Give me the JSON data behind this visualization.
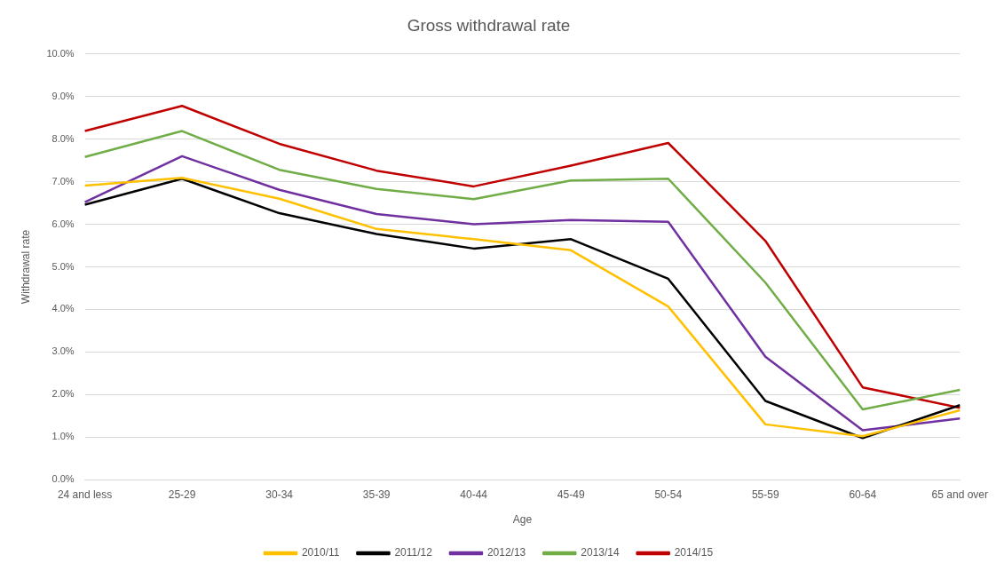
{
  "chart_data": {
    "type": "line",
    "title": "Gross withdrawal rate",
    "xlabel": "Age",
    "ylabel": "Withdrawal rate",
    "categories": [
      "24 and less",
      "25-29",
      "30-34",
      "35-39",
      "40-44",
      "45-49",
      "50-54",
      "55-59",
      "60-64",
      "65 and over"
    ],
    "series": [
      {
        "name": "2010/11",
        "color": "#ffc000",
        "values": [
          6.91,
          7.09,
          6.6,
          5.89,
          5.65,
          5.39,
          4.07,
          1.3,
          1.02,
          1.63
        ]
      },
      {
        "name": "2011/12",
        "color": "#000000",
        "values": [
          6.46,
          7.07,
          6.26,
          5.77,
          5.43,
          5.65,
          4.72,
          1.85,
          0.98,
          1.75
        ]
      },
      {
        "name": "2012/13",
        "color": "#7030a0",
        "values": [
          6.52,
          7.6,
          6.81,
          6.24,
          6.0,
          6.1,
          6.06,
          2.89,
          1.16,
          1.44
        ]
      },
      {
        "name": "2013/14",
        "color": "#70ad47",
        "values": [
          7.58,
          8.19,
          7.28,
          6.83,
          6.59,
          7.03,
          7.07,
          4.63,
          1.65,
          2.11
        ]
      },
      {
        "name": "2014/15",
        "color": "#c00000",
        "values": [
          8.19,
          8.78,
          7.89,
          7.26,
          6.89,
          7.38,
          7.91,
          5.61,
          2.17,
          1.69
        ]
      }
    ],
    "ylim": [
      0,
      10
    ],
    "yticks": [
      {
        "value": 0,
        "label": "0.0%"
      },
      {
        "value": 1,
        "label": "1.0%"
      },
      {
        "value": 2,
        "label": "2.0%"
      },
      {
        "value": 3,
        "label": "3.0%"
      },
      {
        "value": 4,
        "label": "4.0%"
      },
      {
        "value": 5,
        "label": "5.0%"
      },
      {
        "value": 6,
        "label": "6.0%"
      },
      {
        "value": 7,
        "label": "7.0%"
      },
      {
        "value": 8,
        "label": "8.0%"
      },
      {
        "value": 9,
        "label": "9.0%"
      },
      {
        "value": 10,
        "label": "10.0%"
      }
    ],
    "grid": "y",
    "legend": "bottom",
    "marker": "none",
    "line_style": "solid"
  }
}
